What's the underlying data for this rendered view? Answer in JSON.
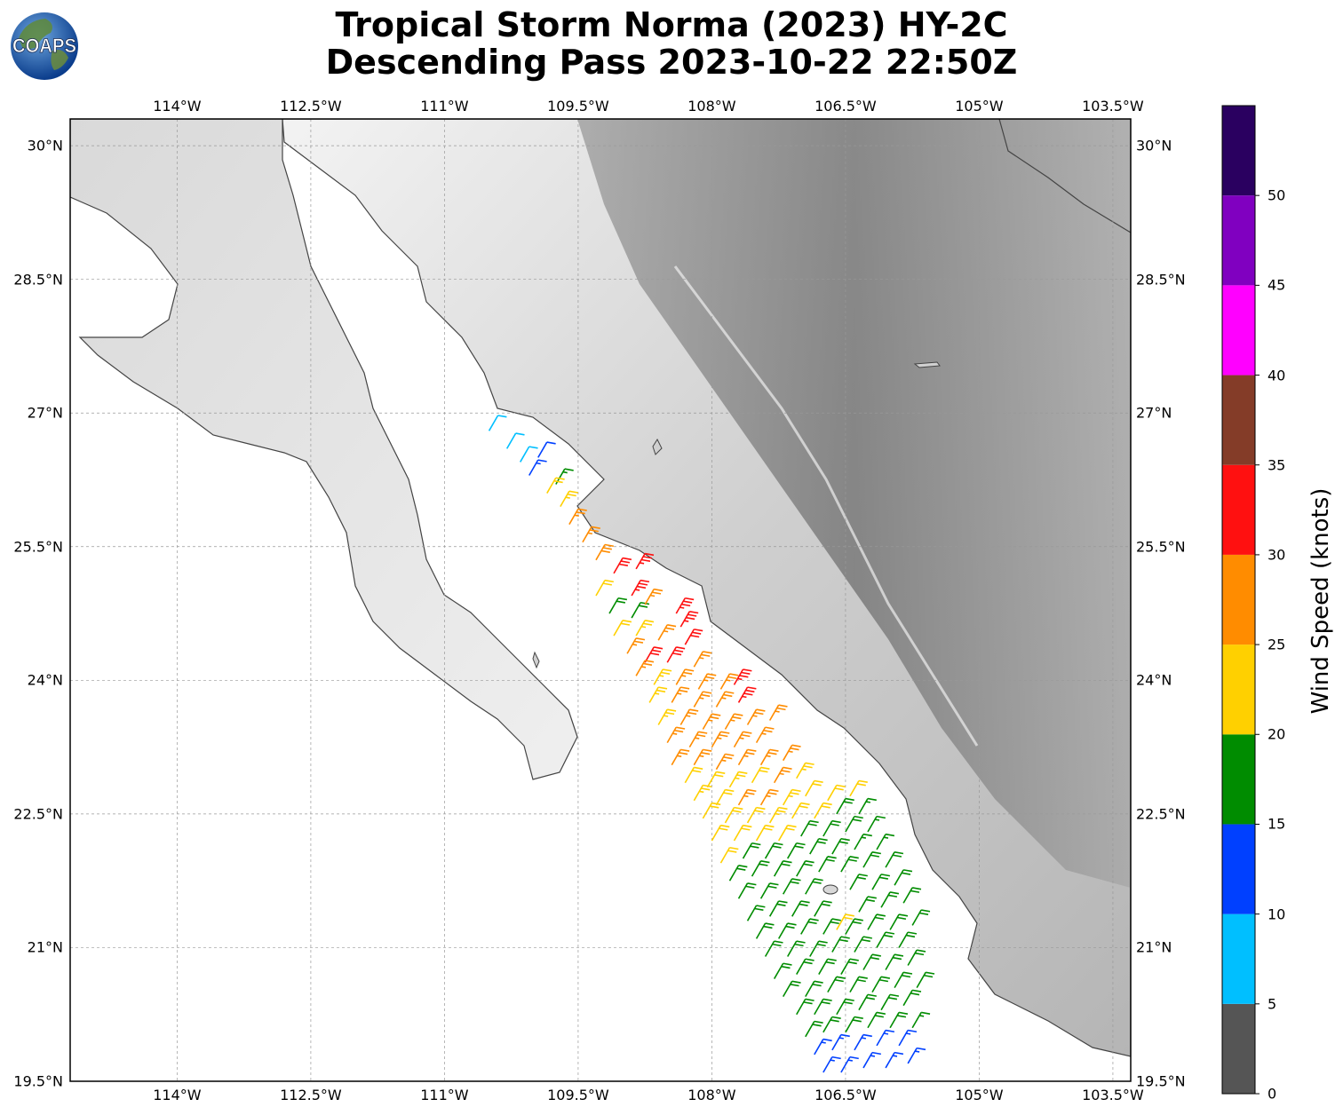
{
  "title": {
    "line1": "Tropical Storm Norma (2023) HY-2C",
    "line2": "Descending Pass 2023-10-22 22:50Z"
  },
  "logo": {
    "text": "COAPS"
  },
  "map": {
    "lon_ticks": [
      "114°W",
      "112.5°W",
      "111°W",
      "109.5°W",
      "108°W",
      "106.5°W",
      "105°W",
      "103.5°W"
    ],
    "lat_ticks": [
      "30°N",
      "28.5°N",
      "27°N",
      "25.5°N",
      "24°N",
      "22.5°N",
      "21°N",
      "19.5°N"
    ],
    "lon_range": [
      -115.2,
      -103.3
    ],
    "lat_range": [
      19.5,
      30.3
    ],
    "gridlines": true
  },
  "colorbar": {
    "label": "Wind Speed (knots)",
    "ticks": [
      "0",
      "5",
      "10",
      "15",
      "20",
      "25",
      "30",
      "35",
      "40",
      "45",
      "50"
    ],
    "colors": [
      "#555555",
      "#00bfff",
      "#0040ff",
      "#008c00",
      "#ffd000",
      "#ff8c00",
      "#ff1010",
      "#843c28",
      "#ff00ff",
      "#8000c0",
      "#2a0060"
    ],
    "max": 55
  },
  "wind_barbs": [
    {
      "lon": -110.5,
      "lat": 26.8,
      "kt": 8
    },
    {
      "lon": -110.3,
      "lat": 26.6,
      "kt": 8
    },
    {
      "lon": -110.15,
      "lat": 26.45,
      "kt": 9
    },
    {
      "lon": -109.95,
      "lat": 26.5,
      "kt": 12
    },
    {
      "lon": -110.05,
      "lat": 26.3,
      "kt": 13
    },
    {
      "lon": -109.75,
      "lat": 26.2,
      "kt": 17
    },
    {
      "lon": -109.85,
      "lat": 26.1,
      "kt": 22
    },
    {
      "lon": -109.7,
      "lat": 25.95,
      "kt": 24
    },
    {
      "lon": -109.6,
      "lat": 25.75,
      "kt": 26
    },
    {
      "lon": -109.45,
      "lat": 25.55,
      "kt": 27
    },
    {
      "lon": -109.3,
      "lat": 25.35,
      "kt": 28
    },
    {
      "lon": -109.1,
      "lat": 25.2,
      "kt": 32
    },
    {
      "lon": -108.85,
      "lat": 25.25,
      "kt": 33
    },
    {
      "lon": -108.9,
      "lat": 24.95,
      "kt": 33
    },
    {
      "lon": -109.3,
      "lat": 24.95,
      "kt": 22
    },
    {
      "lon": -109.15,
      "lat": 24.75,
      "kt": 18
    },
    {
      "lon": -108.9,
      "lat": 24.7,
      "kt": 18
    },
    {
      "lon": -108.75,
      "lat": 24.85,
      "kt": 27
    },
    {
      "lon": -108.4,
      "lat": 24.75,
      "kt": 34
    },
    {
      "lon": -108.35,
      "lat": 24.6,
      "kt": 33
    },
    {
      "lon": -109.1,
      "lat": 24.5,
      "kt": 22
    },
    {
      "lon": -108.85,
      "lat": 24.5,
      "kt": 23
    },
    {
      "lon": -108.6,
      "lat": 24.45,
      "kt": 26
    },
    {
      "lon": -108.3,
      "lat": 24.4,
      "kt": 32
    },
    {
      "lon": -108.95,
      "lat": 24.3,
      "kt": 26
    },
    {
      "lon": -108.75,
      "lat": 24.2,
      "kt": 31
    },
    {
      "lon": -108.5,
      "lat": 24.2,
      "kt": 32
    },
    {
      "lon": -108.2,
      "lat": 24.15,
      "kt": 26
    },
    {
      "lon": -108.85,
      "lat": 24.05,
      "kt": 26
    },
    {
      "lon": -108.65,
      "lat": 23.95,
      "kt": 24
    },
    {
      "lon": -108.4,
      "lat": 23.95,
      "kt": 27
    },
    {
      "lon": -108.15,
      "lat": 23.9,
      "kt": 27
    },
    {
      "lon": -107.9,
      "lat": 23.9,
      "kt": 27
    },
    {
      "lon": -107.75,
      "lat": 23.95,
      "kt": 33
    },
    {
      "lon": -108.7,
      "lat": 23.75,
      "kt": 23
    },
    {
      "lon": -108.45,
      "lat": 23.75,
      "kt": 26
    },
    {
      "lon": -108.2,
      "lat": 23.7,
      "kt": 27
    },
    {
      "lon": -107.95,
      "lat": 23.7,
      "kt": 27
    },
    {
      "lon": -107.7,
      "lat": 23.75,
      "kt": 33
    },
    {
      "lon": -108.6,
      "lat": 23.5,
      "kt": 23
    },
    {
      "lon": -108.35,
      "lat": 23.5,
      "kt": 27
    },
    {
      "lon": -108.1,
      "lat": 23.45,
      "kt": 27
    },
    {
      "lon": -107.85,
      "lat": 23.45,
      "kt": 27
    },
    {
      "lon": -107.6,
      "lat": 23.5,
      "kt": 27
    },
    {
      "lon": -107.35,
      "lat": 23.55,
      "kt": 26
    },
    {
      "lon": -108.5,
      "lat": 23.3,
      "kt": 27
    },
    {
      "lon": -108.25,
      "lat": 23.25,
      "kt": 27
    },
    {
      "lon": -108.0,
      "lat": 23.25,
      "kt": 27
    },
    {
      "lon": -107.75,
      "lat": 23.25,
      "kt": 27
    },
    {
      "lon": -107.5,
      "lat": 23.3,
      "kt": 27
    },
    {
      "lon": -108.45,
      "lat": 23.05,
      "kt": 26
    },
    {
      "lon": -108.2,
      "lat": 23.05,
      "kt": 27
    },
    {
      "lon": -107.95,
      "lat": 23.0,
      "kt": 27
    },
    {
      "lon": -107.7,
      "lat": 23.05,
      "kt": 26
    },
    {
      "lon": -107.45,
      "lat": 23.05,
      "kt": 27
    },
    {
      "lon": -107.2,
      "lat": 23.1,
      "kt": 26
    },
    {
      "lon": -108.3,
      "lat": 22.85,
      "kt": 22
    },
    {
      "lon": -108.05,
      "lat": 22.8,
      "kt": 22
    },
    {
      "lon": -107.8,
      "lat": 22.8,
      "kt": 24
    },
    {
      "lon": -107.55,
      "lat": 22.85,
      "kt": 22
    },
    {
      "lon": -107.3,
      "lat": 22.85,
      "kt": 26
    },
    {
      "lon": -107.05,
      "lat": 22.9,
      "kt": 24
    },
    {
      "lon": -108.2,
      "lat": 22.65,
      "kt": 23
    },
    {
      "lon": -107.95,
      "lat": 22.6,
      "kt": 22
    },
    {
      "lon": -107.7,
      "lat": 22.6,
      "kt": 26
    },
    {
      "lon": -107.45,
      "lat": 22.6,
      "kt": 27
    },
    {
      "lon": -107.2,
      "lat": 22.6,
      "kt": 24
    },
    {
      "lon": -106.95,
      "lat": 22.7,
      "kt": 22
    },
    {
      "lon": -106.7,
      "lat": 22.65,
      "kt": 22
    },
    {
      "lon": -106.45,
      "lat": 22.7,
      "kt": 22
    },
    {
      "lon": -108.1,
      "lat": 22.45,
      "kt": 22
    },
    {
      "lon": -107.85,
      "lat": 22.4,
      "kt": 22
    },
    {
      "lon": -107.6,
      "lat": 22.4,
      "kt": 22
    },
    {
      "lon": -107.35,
      "lat": 22.4,
      "kt": 23
    },
    {
      "lon": -107.1,
      "lat": 22.45,
      "kt": 22
    },
    {
      "lon": -106.85,
      "lat": 22.45,
      "kt": 22
    },
    {
      "lon": -106.6,
      "lat": 22.5,
      "kt": 18
    },
    {
      "lon": -106.35,
      "lat": 22.5,
      "kt": 17
    },
    {
      "lon": -108.0,
      "lat": 22.2,
      "kt": 22
    },
    {
      "lon": -107.75,
      "lat": 22.2,
      "kt": 22
    },
    {
      "lon": -107.5,
      "lat": 22.2,
      "kt": 22
    },
    {
      "lon": -107.25,
      "lat": 22.2,
      "kt": 22
    },
    {
      "lon": -107.0,
      "lat": 22.25,
      "kt": 18
    },
    {
      "lon": -106.75,
      "lat": 22.25,
      "kt": 18
    },
    {
      "lon": -106.5,
      "lat": 22.3,
      "kt": 18
    },
    {
      "lon": -106.25,
      "lat": 22.3,
      "kt": 17
    },
    {
      "lon": -107.9,
      "lat": 21.95,
      "kt": 22
    },
    {
      "lon": -107.65,
      "lat": 22.0,
      "kt": 18
    },
    {
      "lon": -107.4,
      "lat": 22.0,
      "kt": 18
    },
    {
      "lon": -107.15,
      "lat": 22.0,
      "kt": 18
    },
    {
      "lon": -106.9,
      "lat": 22.05,
      "kt": 18
    },
    {
      "lon": -106.65,
      "lat": 22.05,
      "kt": 18
    },
    {
      "lon": -106.4,
      "lat": 22.1,
      "kt": 17
    },
    {
      "lon": -106.15,
      "lat": 22.1,
      "kt": 17
    },
    {
      "lon": -107.8,
      "lat": 21.75,
      "kt": 18
    },
    {
      "lon": -107.55,
      "lat": 21.8,
      "kt": 18
    },
    {
      "lon": -107.3,
      "lat": 21.8,
      "kt": 18
    },
    {
      "lon": -107.05,
      "lat": 21.8,
      "kt": 18
    },
    {
      "lon": -106.8,
      "lat": 21.85,
      "kt": 18
    },
    {
      "lon": -106.55,
      "lat": 21.85,
      "kt": 18
    },
    {
      "lon": -106.3,
      "lat": 21.9,
      "kt": 18
    },
    {
      "lon": -106.05,
      "lat": 21.9,
      "kt": 18
    },
    {
      "lon": -107.7,
      "lat": 21.55,
      "kt": 18
    },
    {
      "lon": -107.45,
      "lat": 21.55,
      "kt": 18
    },
    {
      "lon": -107.2,
      "lat": 21.6,
      "kt": 18
    },
    {
      "lon": -106.95,
      "lat": 21.6,
      "kt": 18
    },
    {
      "lon": -106.45,
      "lat": 21.65,
      "kt": 18
    },
    {
      "lon": -106.2,
      "lat": 21.65,
      "kt": 18
    },
    {
      "lon": -105.95,
      "lat": 21.7,
      "kt": 18
    },
    {
      "lon": -107.6,
      "lat": 21.3,
      "kt": 18
    },
    {
      "lon": -107.35,
      "lat": 21.35,
      "kt": 18
    },
    {
      "lon": -107.1,
      "lat": 21.35,
      "kt": 18
    },
    {
      "lon": -106.85,
      "lat": 21.35,
      "kt": 18
    },
    {
      "lon": -106.6,
      "lat": 21.2,
      "kt": 22
    },
    {
      "lon": -106.35,
      "lat": 21.4,
      "kt": 18
    },
    {
      "lon": -106.1,
      "lat": 21.45,
      "kt": 18
    },
    {
      "lon": -105.85,
      "lat": 21.5,
      "kt": 18
    },
    {
      "lon": -107.5,
      "lat": 21.1,
      "kt": 18
    },
    {
      "lon": -107.25,
      "lat": 21.1,
      "kt": 18
    },
    {
      "lon": -107.0,
      "lat": 21.15,
      "kt": 18
    },
    {
      "lon": -106.75,
      "lat": 21.15,
      "kt": 18
    },
    {
      "lon": -106.5,
      "lat": 21.15,
      "kt": 18
    },
    {
      "lon": -106.25,
      "lat": 21.2,
      "kt": 18
    },
    {
      "lon": -106.0,
      "lat": 21.2,
      "kt": 18
    },
    {
      "lon": -105.75,
      "lat": 21.25,
      "kt": 18
    },
    {
      "lon": -107.4,
      "lat": 20.9,
      "kt": 18
    },
    {
      "lon": -107.15,
      "lat": 20.9,
      "kt": 18
    },
    {
      "lon": -106.9,
      "lat": 20.9,
      "kt": 18
    },
    {
      "lon": -106.65,
      "lat": 20.95,
      "kt": 18
    },
    {
      "lon": -106.4,
      "lat": 20.95,
      "kt": 18
    },
    {
      "lon": -106.15,
      "lat": 21.0,
      "kt": 18
    },
    {
      "lon": -105.9,
      "lat": 21.0,
      "kt": 18
    },
    {
      "lon": -107.3,
      "lat": 20.65,
      "kt": 18
    },
    {
      "lon": -107.05,
      "lat": 20.7,
      "kt": 18
    },
    {
      "lon": -106.8,
      "lat": 20.7,
      "kt": 18
    },
    {
      "lon": -106.55,
      "lat": 20.7,
      "kt": 18
    },
    {
      "lon": -106.3,
      "lat": 20.75,
      "kt": 18
    },
    {
      "lon": -106.05,
      "lat": 20.75,
      "kt": 18
    },
    {
      "lon": -105.8,
      "lat": 20.8,
      "kt": 18
    },
    {
      "lon": -107.2,
      "lat": 20.45,
      "kt": 18
    },
    {
      "lon": -106.95,
      "lat": 20.45,
      "kt": 18
    },
    {
      "lon": -106.7,
      "lat": 20.5,
      "kt": 18
    },
    {
      "lon": -106.45,
      "lat": 20.5,
      "kt": 18
    },
    {
      "lon": -106.2,
      "lat": 20.5,
      "kt": 18
    },
    {
      "lon": -105.95,
      "lat": 20.55,
      "kt": 18
    },
    {
      "lon": -105.7,
      "lat": 20.55,
      "kt": 18
    },
    {
      "lon": -107.05,
      "lat": 20.25,
      "kt": 18
    },
    {
      "lon": -106.85,
      "lat": 20.25,
      "kt": 18
    },
    {
      "lon": -106.6,
      "lat": 20.25,
      "kt": 18
    },
    {
      "lon": -106.35,
      "lat": 20.3,
      "kt": 18
    },
    {
      "lon": -106.1,
      "lat": 20.3,
      "kt": 18
    },
    {
      "lon": -105.85,
      "lat": 20.35,
      "kt": 18
    },
    {
      "lon": -106.95,
      "lat": 20.0,
      "kt": 18
    },
    {
      "lon": -106.75,
      "lat": 20.05,
      "kt": 18
    },
    {
      "lon": -106.5,
      "lat": 20.05,
      "kt": 18
    },
    {
      "lon": -106.25,
      "lat": 20.1,
      "kt": 18
    },
    {
      "lon": -106.0,
      "lat": 20.1,
      "kt": 18
    },
    {
      "lon": -105.75,
      "lat": 20.1,
      "kt": 17
    },
    {
      "lon": -106.85,
      "lat": 19.8,
      "kt": 13
    },
    {
      "lon": -106.65,
      "lat": 19.85,
      "kt": 13
    },
    {
      "lon": -106.4,
      "lat": 19.85,
      "kt": 13
    },
    {
      "lon": -106.15,
      "lat": 19.9,
      "kt": 13
    },
    {
      "lon": -105.9,
      "lat": 19.9,
      "kt": 13
    },
    {
      "lon": -106.75,
      "lat": 19.6,
      "kt": 13
    },
    {
      "lon": -106.55,
      "lat": 19.6,
      "kt": 13
    },
    {
      "lon": -106.3,
      "lat": 19.65,
      "kt": 13
    },
    {
      "lon": -106.05,
      "lat": 19.65,
      "kt": 13
    },
    {
      "lon": -105.8,
      "lat": 19.7,
      "kt": 13
    }
  ]
}
